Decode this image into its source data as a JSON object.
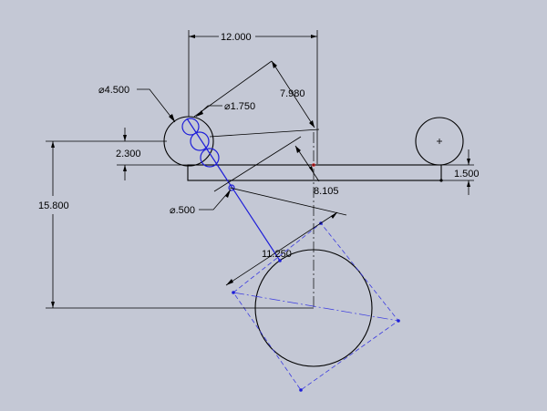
{
  "drawing": {
    "dimensions": {
      "top_width": "12.000",
      "diagonal_upper": "7.980",
      "dia_large": "⌀4.500",
      "dia_mid": "⌀1.750",
      "dia_small": "⌀.500",
      "left_offset": "2.300",
      "right_offset": "1.500",
      "vertical_total": "15.800",
      "diagonal_middle": "8.105",
      "diagonal_lower": "11.250"
    },
    "colors": {
      "background": "#c4c8d5",
      "geometry": "#000000",
      "construction": "#1e1ed8",
      "origin_marker": "#d02020"
    }
  }
}
